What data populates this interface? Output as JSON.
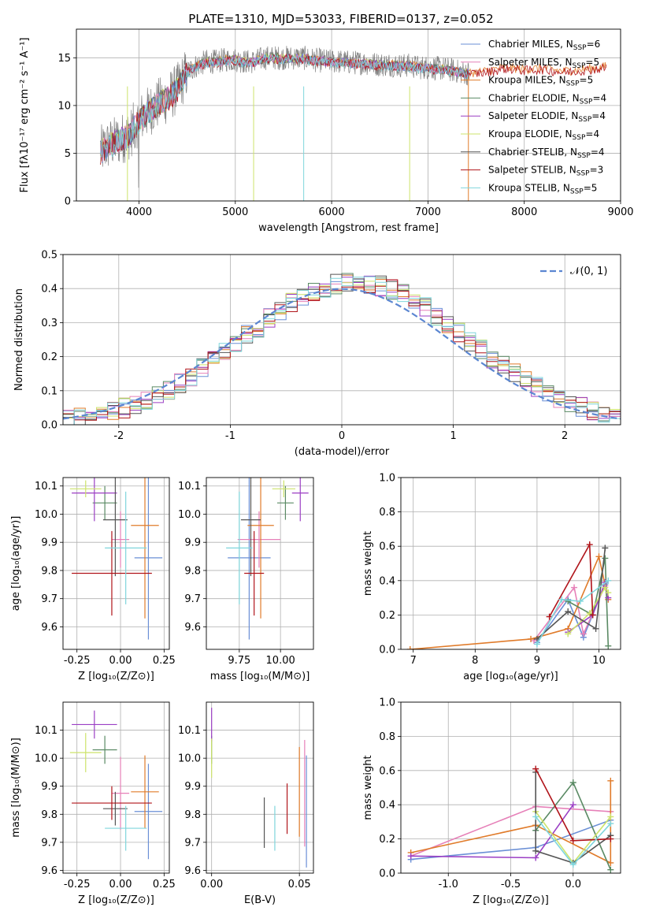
{
  "colors": {
    "Chabrier MILES": "#6a8fd6",
    "Salpeter MILES": "#e680b8",
    "Kroupa MILES": "#e07b2a",
    "Chabrier ELODIE": "#5a8a64",
    "Salpeter ELODIE": "#9b3fc4",
    "Kroupa ELODIE": "#cde36b",
    "Chabrier STELIB": "#555555",
    "Salpeter STELIB": "#b0141a",
    "Kroupa STELIB": "#7fd6dc",
    "data": "#808080",
    "gauss": "#5b86d1"
  },
  "chart_data": [
    {
      "id": "spectrum",
      "type": "line",
      "title": "PLATE=1310, MJD=53033, FIBERID=0137, z=0.052",
      "xlabel": "wavelength [Angstrom, rest frame]",
      "ylabel": "Flux [fλ10⁻¹⁷ erg cm⁻² s⁻¹ A⁻¹]",
      "xlim": [
        3350,
        9000
      ],
      "ylim": [
        0,
        18
      ],
      "xticks": [
        4000,
        5000,
        6000,
        7000,
        8000,
        9000
      ],
      "yticks": [
        0,
        5,
        10,
        15
      ],
      "legend": "top-right",
      "legend_entries": [
        {
          "name": "Chabrier MILES",
          "nssp": "6"
        },
        {
          "name": "Salpeter MILES",
          "nssp": "5"
        },
        {
          "name": "Kroupa MILES",
          "nssp": "5"
        },
        {
          "name": "Chabrier ELODIE",
          "nssp": "4"
        },
        {
          "name": "Salpeter ELODIE",
          "nssp": "4"
        },
        {
          "name": "Kroupa ELODIE",
          "nssp": "4"
        },
        {
          "name": "Chabrier STELIB",
          "nssp": "4"
        },
        {
          "name": "Salpeter STELIB",
          "nssp": "3"
        },
        {
          "name": "Kroupa STELIB",
          "nssp": "5"
        }
      ],
      "continuum": [
        [
          3600,
          5.2
        ],
        [
          3700,
          6.0
        ],
        [
          3800,
          6.4
        ],
        [
          3900,
          7.0
        ],
        [
          4000,
          8.5
        ],
        [
          4100,
          9.4
        ],
        [
          4200,
          10.2
        ],
        [
          4300,
          10.8
        ],
        [
          4400,
          11.8
        ],
        [
          4500,
          13.5
        ],
        [
          4600,
          14.2
        ],
        [
          4700,
          14.6
        ],
        [
          4800,
          14.6
        ],
        [
          4900,
          14.8
        ],
        [
          5000,
          14.8
        ],
        [
          5100,
          14.6
        ],
        [
          5200,
          14.6
        ],
        [
          5300,
          15.0
        ],
        [
          5400,
          15.0
        ],
        [
          5500,
          15.0
        ],
        [
          5600,
          15.0
        ],
        [
          5700,
          15.0
        ],
        [
          5800,
          14.8
        ],
        [
          5900,
          14.7
        ],
        [
          6000,
          14.6
        ],
        [
          6100,
          14.6
        ],
        [
          6200,
          14.5
        ],
        [
          6300,
          14.5
        ],
        [
          6400,
          14.4
        ],
        [
          6500,
          14.3
        ],
        [
          6600,
          14.3
        ],
        [
          6700,
          14.2
        ],
        [
          6800,
          14.2
        ],
        [
          6900,
          14.0
        ],
        [
          7000,
          14.0
        ],
        [
          7100,
          13.9
        ],
        [
          7200,
          13.8
        ],
        [
          7300,
          13.6
        ],
        [
          7400,
          13.4
        ]
      ],
      "model_continuum": [
        [
          7400,
          13.4
        ],
        [
          7600,
          13.6
        ],
        [
          7800,
          14.0
        ],
        [
          8000,
          13.8
        ],
        [
          8200,
          13.9
        ],
        [
          8400,
          13.6
        ],
        [
          8600,
          13.8
        ],
        [
          8800,
          14.0
        ],
        [
          8850,
          14.1
        ]
      ]
    },
    {
      "id": "residuals",
      "type": "line",
      "xlabel": "(data-model)/error",
      "ylabel": "Normed distribution",
      "xlim": [
        -2.5,
        2.5
      ],
      "ylim": [
        0,
        0.5
      ],
      "xticks": [
        -2,
        -1,
        0,
        1,
        2
      ],
      "yticks": [
        0.0,
        0.1,
        0.2,
        0.3,
        0.4,
        0.5
      ],
      "legend": "top-right",
      "legend_label": "𝒩(0, 1)",
      "bin_width": 0.1
    },
    {
      "id": "age-vs-Z",
      "type": "scatter",
      "xlabel": "Z [log₁₀(Z/Z⊙)]",
      "ylabel": "age  [log₁₀(age/yr)]",
      "xlim": [
        -0.33,
        0.28
      ],
      "ylim": [
        9.52,
        10.13
      ],
      "xticks": [
        -0.25,
        0.0,
        0.25
      ],
      "yticks": [
        9.6,
        9.7,
        9.8,
        9.9,
        10.0,
        10.1
      ],
      "points": [
        {
          "series": "Chabrier MILES",
          "x": 0.16,
          "xerr": 0.08,
          "y": 9.845,
          "yerr": 0.29
        },
        {
          "series": "Salpeter MILES",
          "x": 0.0,
          "xerr": 0.05,
          "y": 9.91,
          "yerr": 0.1
        },
        {
          "series": "Kroupa MILES",
          "x": 0.14,
          "xerr": 0.08,
          "y": 9.96,
          "yerr": 0.33
        },
        {
          "series": "Chabrier ELODIE",
          "x": -0.09,
          "xerr": 0.07,
          "y": 10.04,
          "yerr": 0.06
        },
        {
          "series": "Salpeter ELODIE",
          "x": -0.15,
          "xerr": 0.13,
          "y": 10.075,
          "yerr": 0.1
        },
        {
          "series": "Kroupa ELODIE",
          "x": -0.2,
          "xerr": 0.09,
          "y": 10.09,
          "yerr": 0.03
        },
        {
          "series": "Chabrier STELIB",
          "x": -0.03,
          "xerr": 0.07,
          "y": 9.98,
          "yerr": 0.2
        },
        {
          "series": "Salpeter STELIB",
          "x": -0.05,
          "xerr": 0.23,
          "y": 9.79,
          "yerr": 0.15
        },
        {
          "series": "Kroupa STELIB",
          "x": 0.03,
          "xerr": 0.12,
          "y": 9.88,
          "yerr": 0.2
        }
      ]
    },
    {
      "id": "age-vs-mass",
      "type": "scatter",
      "xlabel": "mass [log₁₀(M/M⊙)]",
      "ylabel": "",
      "xlim": [
        9.55,
        10.2
      ],
      "ylim": [
        9.52,
        10.13
      ],
      "xticks": [
        9.75,
        10.0
      ],
      "yticks": [
        9.6,
        9.7,
        9.8,
        9.9,
        10.0,
        10.1
      ],
      "points": [
        {
          "series": "Chabrier MILES",
          "x": 9.81,
          "xerr": 0.13,
          "y": 9.845,
          "yerr": 0.29
        },
        {
          "series": "Salpeter MILES",
          "x": 9.87,
          "xerr": 0.13,
          "y": 9.91,
          "yerr": 0.1
        },
        {
          "series": "Kroupa MILES",
          "x": 9.88,
          "xerr": 0.08,
          "y": 9.96,
          "yerr": 0.33
        },
        {
          "series": "Chabrier ELODIE",
          "x": 10.03,
          "xerr": 0.05,
          "y": 10.04,
          "yerr": 0.06
        },
        {
          "series": "Salpeter ELODIE",
          "x": 10.12,
          "xerr": 0.05,
          "y": 10.075,
          "yerr": 0.1
        },
        {
          "series": "Kroupa ELODIE",
          "x": 10.02,
          "xerr": 0.07,
          "y": 10.09,
          "yerr": 0.03
        },
        {
          "series": "Chabrier STELIB",
          "x": 9.82,
          "xerr": 0.06,
          "y": 9.98,
          "yerr": 0.2
        },
        {
          "series": "Salpeter STELIB",
          "x": 9.84,
          "xerr": 0.06,
          "y": 9.79,
          "yerr": 0.15
        },
        {
          "series": "Kroupa STELIB",
          "x": 9.75,
          "xerr": 0.08,
          "y": 9.88,
          "yerr": 0.2
        }
      ]
    },
    {
      "id": "massweight-vs-age",
      "type": "line",
      "xlabel": "age  [log₁₀(age/yr)]",
      "ylabel": "mass weight",
      "xlim": [
        6.8,
        10.35
      ],
      "ylim": [
        0,
        1.0
      ],
      "xticks": [
        7,
        8,
        9,
        10
      ],
      "yticks": [
        0.0,
        0.2,
        0.4,
        0.6,
        0.8,
        1.0
      ],
      "series": [
        {
          "name": "Chabrier MILES",
          "points": [
            [
              9.0,
              0.04
            ],
            [
              9.5,
              0.29
            ],
            [
              9.75,
              0.07
            ],
            [
              10.1,
              0.38
            ]
          ]
        },
        {
          "name": "Salpeter MILES",
          "points": [
            [
              8.95,
              0.05
            ],
            [
              9.6,
              0.36
            ],
            [
              9.75,
              0.09
            ],
            [
              10.1,
              0.37
            ]
          ]
        },
        {
          "name": "Kroupa MILES",
          "points": [
            [
              6.95,
              0.0
            ],
            [
              8.9,
              0.06
            ],
            [
              9.5,
              0.12
            ],
            [
              10.0,
              0.54
            ],
            [
              10.15,
              0.29
            ]
          ]
        },
        {
          "name": "Chabrier ELODIE",
          "points": [
            [
              9.5,
              0.28
            ],
            [
              9.9,
              0.2
            ],
            [
              10.1,
              0.53
            ],
            [
              10.15,
              0.02
            ]
          ]
        },
        {
          "name": "Salpeter ELODIE",
          "points": [
            [
              9.5,
              0.1
            ],
            [
              9.9,
              0.2
            ],
            [
              10.1,
              0.39
            ],
            [
              10.15,
              0.3
            ]
          ]
        },
        {
          "name": "Kroupa ELODIE",
          "points": [
            [
              9.5,
              0.09
            ],
            [
              9.85,
              0.21
            ],
            [
              10.1,
              0.36
            ],
            [
              10.15,
              0.33
            ]
          ]
        },
        {
          "name": "Chabrier STELIB",
          "points": [
            [
              9.0,
              0.06
            ],
            [
              9.5,
              0.22
            ],
            [
              9.95,
              0.12
            ],
            [
              10.1,
              0.59
            ]
          ]
        },
        {
          "name": "Salpeter STELIB",
          "points": [
            [
              9.2,
              0.19
            ],
            [
              9.85,
              0.61
            ],
            [
              9.9,
              0.2
            ]
          ]
        },
        {
          "name": "Kroupa STELIB",
          "points": [
            [
              9.0,
              0.03
            ],
            [
              9.4,
              0.29
            ],
            [
              9.7,
              0.28
            ],
            [
              10.15,
              0.4
            ]
          ]
        }
      ]
    },
    {
      "id": "mass-vs-Z",
      "type": "scatter",
      "xlabel": "Z [log₁₀(Z/Z⊙)]",
      "ylabel": "mass [log₁₀(M/M⊙)]",
      "xlim": [
        -0.33,
        0.28
      ],
      "ylim": [
        9.59,
        10.2
      ],
      "xticks": [
        -0.25,
        0.0,
        0.25
      ],
      "yticks": [
        9.6,
        9.7,
        9.8,
        9.9,
        10.0,
        10.1
      ],
      "points": [
        {
          "series": "Chabrier MILES",
          "x": 0.16,
          "xerr": 0.08,
          "y": 9.81,
          "yerr": 0.17
        },
        {
          "series": "Salpeter MILES",
          "x": 0.0,
          "xerr": 0.05,
          "y": 9.875,
          "yerr": 0.13
        },
        {
          "series": "Kroupa MILES",
          "x": 0.14,
          "xerr": 0.08,
          "y": 9.88,
          "yerr": 0.13
        },
        {
          "series": "Chabrier ELODIE",
          "x": -0.09,
          "xerr": 0.07,
          "y": 10.03,
          "yerr": 0.05
        },
        {
          "series": "Salpeter ELODIE",
          "x": -0.15,
          "xerr": 0.13,
          "y": 10.12,
          "yerr": 0.05
        },
        {
          "series": "Kroupa ELODIE",
          "x": -0.2,
          "xerr": 0.09,
          "y": 10.02,
          "yerr": 0.07
        },
        {
          "series": "Chabrier STELIB",
          "x": -0.03,
          "xerr": 0.07,
          "y": 9.82,
          "yerr": 0.06
        },
        {
          "series": "Salpeter STELIB",
          "x": -0.05,
          "xerr": 0.23,
          "y": 9.84,
          "yerr": 0.06
        },
        {
          "series": "Kroupa STELIB",
          "x": 0.03,
          "xerr": 0.12,
          "y": 9.75,
          "yerr": 0.08
        }
      ]
    },
    {
      "id": "mass-vs-ebv",
      "type": "scatter",
      "xlabel": "E(B-V)",
      "ylabel": "",
      "xlim": [
        -0.003,
        0.058
      ],
      "ylim": [
        9.59,
        10.2
      ],
      "xticks": [
        0.0,
        0.05
      ],
      "yticks": [
        9.6,
        9.7,
        9.8,
        9.9,
        10.0,
        10.1
      ],
      "points": [
        {
          "series": "Chabrier MILES",
          "x": 0.054,
          "y": 9.81,
          "yerr": 0.2
        },
        {
          "series": "Salpeter MILES",
          "x": 0.053,
          "y": 9.875,
          "yerr": 0.19
        },
        {
          "series": "Kroupa MILES",
          "x": 0.05,
          "y": 9.88,
          "yerr": 0.16
        },
        {
          "series": "Chabrier ELODIE",
          "x": 0.0,
          "y": 10.03,
          "yerr": 0.05
        },
        {
          "series": "Salpeter ELODIE",
          "x": 0.0,
          "y": 10.12,
          "yerr": 0.06
        },
        {
          "series": "Kroupa ELODIE",
          "x": 0.0,
          "y": 10.0,
          "yerr": 0.07
        },
        {
          "series": "Chabrier STELIB",
          "x": 0.03,
          "y": 9.77,
          "yerr": 0.09
        },
        {
          "series": "Salpeter STELIB",
          "x": 0.043,
          "y": 9.82,
          "yerr": 0.09
        },
        {
          "series": "Kroupa STELIB",
          "x": 0.036,
          "y": 9.75,
          "yerr": 0.08
        }
      ]
    },
    {
      "id": "massweight-vs-Z",
      "type": "line",
      "xlabel": "Z [log₁₀(Z/Z⊙)]",
      "ylabel": "mass weight",
      "xlim": [
        -1.38,
        0.38
      ],
      "ylim": [
        0,
        1.0
      ],
      "xticks": [
        -1.0,
        -0.5,
        0.0
      ],
      "yticks": [
        0.0,
        0.2,
        0.4,
        0.6,
        0.8,
        1.0
      ],
      "series": [
        {
          "name": "Chabrier MILES",
          "points": [
            [
              -1.3,
              0.08
            ],
            [
              -0.3,
              0.15
            ],
            [
              0.3,
              0.31
            ]
          ]
        },
        {
          "name": "Salpeter MILES",
          "points": [
            [
              -1.3,
              0.1
            ],
            [
              -0.3,
              0.39
            ],
            [
              0.3,
              0.36
            ]
          ]
        },
        {
          "name": "Kroupa MILES",
          "points": [
            [
              -1.3,
              0.12
            ],
            [
              -0.3,
              0.28
            ],
            [
              0.3,
              0.06
            ],
            [
              0.3,
              0.54
            ]
          ]
        },
        {
          "name": "Chabrier ELODIE",
          "points": [
            [
              -0.3,
              0.25
            ],
            [
              0.0,
              0.53
            ],
            [
              0.3,
              0.02
            ]
          ]
        },
        {
          "name": "Salpeter ELODIE",
          "points": [
            [
              -1.3,
              0.1
            ],
            [
              -0.3,
              0.09
            ],
            [
              0.0,
              0.4
            ]
          ]
        },
        {
          "name": "Kroupa ELODIE",
          "points": [
            [
              -0.3,
              0.36
            ],
            [
              0.0,
              0.06
            ],
            [
              0.3,
              0.33
            ]
          ]
        },
        {
          "name": "Chabrier STELIB",
          "points": [
            [
              -0.3,
              0.59
            ],
            [
              -0.3,
              0.13
            ],
            [
              0.0,
              0.06
            ],
            [
              0.3,
              0.22
            ]
          ]
        },
        {
          "name": "Salpeter STELIB",
          "points": [
            [
              -0.3,
              0.61
            ],
            [
              0.0,
              0.19
            ],
            [
              0.3,
              0.2
            ]
          ]
        },
        {
          "name": "Kroupa STELIB",
          "points": [
            [
              -0.3,
              0.33
            ],
            [
              0.0,
              0.05
            ],
            [
              0.3,
              0.29
            ]
          ]
        }
      ]
    }
  ]
}
